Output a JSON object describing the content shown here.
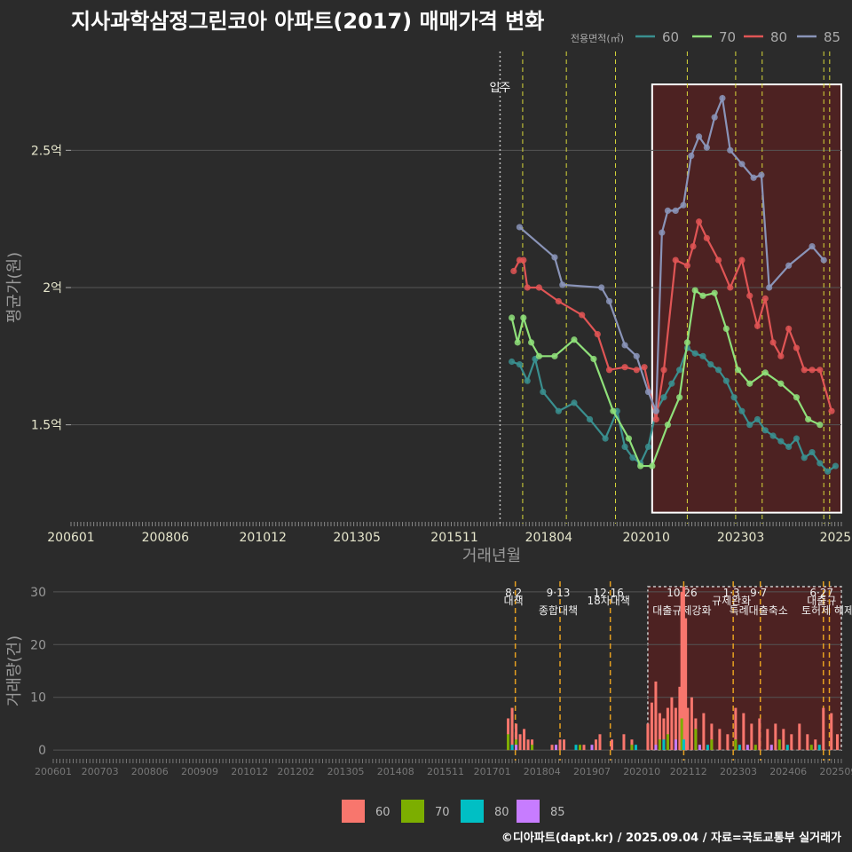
{
  "title": "지사과학삼정그린코아 아파트(2017) 매매가격 변화",
  "footer": "©디아파트(dapt.kr) / 2025.09.04 / 자료=국토교통부 실거래가",
  "colors": {
    "bg": "#2b2b2b",
    "grid": "#555555",
    "s60": "#3a8f8f",
    "s70": "#8fe07a",
    "s80": "#e05555",
    "s85": "#8a94b8",
    "bar60": "#f8766d",
    "bar70": "#7cae00",
    "bar80": "#00bfc4",
    "bar85": "#c77cff",
    "policy": "#d9d93a",
    "policy_bar": "#e6a020",
    "highlight": "#5a2020"
  },
  "chart_data": [
    {
      "type": "line",
      "title": "지사과학삼정그린코아 아파트(2017) 매매가격 변화",
      "xlabel": "거래년월",
      "ylabel": "평균가(원)",
      "x_range": [
        2006.0,
        2025.75
      ],
      "y_range": [
        1.14,
        2.86
      ],
      "x_ticks": [
        {
          "label": "200601",
          "x": 2006.0
        },
        {
          "label": "200806",
          "x": 2008.42
        },
        {
          "label": "201012",
          "x": 2010.92
        },
        {
          "label": "201305",
          "x": 2013.33
        },
        {
          "label": "201511",
          "x": 2015.83
        },
        {
          "label": "201804",
          "x": 2018.25
        },
        {
          "label": "202010",
          "x": 2020.75
        },
        {
          "label": "202303",
          "x": 2023.17
        },
        {
          "label": "2025",
          "x": 2025.6
        }
      ],
      "y_ticks": [
        {
          "label": "1.5억",
          "v": 1.5
        },
        {
          "label": "2억",
          "v": 2.0
        },
        {
          "label": "2.5억",
          "v": 2.5
        }
      ],
      "legend_title": "전용면적(㎡)",
      "legend_position": "top-right",
      "legend": [
        "60",
        "70",
        "80",
        "85"
      ],
      "marker_label": {
        "label": "입주",
        "x": 2017.0
      },
      "highlight_box": {
        "x0": 2020.9,
        "x1": 2025.8,
        "y0": 1.18,
        "y1": 2.74
      },
      "policy_lines": [
        2017.58,
        2018.7,
        2019.96,
        2021.8,
        2023.04,
        2023.72,
        2025.3,
        2025.45
      ],
      "series": [
        {
          "name": "60",
          "x": [
            2017.3,
            2017.5,
            2017.7,
            2017.9,
            2018.1,
            2018.5,
            2018.9,
            2019.3,
            2019.7,
            2020.0,
            2020.2,
            2020.4,
            2020.6,
            2020.8,
            2021.0,
            2021.2,
            2021.4,
            2021.6,
            2021.8,
            2022.0,
            2022.2,
            2022.4,
            2022.6,
            2022.8,
            2023.0,
            2023.2,
            2023.4,
            2023.6,
            2023.8,
            2024.0,
            2024.2,
            2024.4,
            2024.6,
            2024.8,
            2025.0,
            2025.2,
            2025.4,
            2025.6
          ],
          "values": [
            1.73,
            1.72,
            1.66,
            1.74,
            1.62,
            1.55,
            1.58,
            1.52,
            1.45,
            1.55,
            1.42,
            1.38,
            1.36,
            1.42,
            1.55,
            1.6,
            1.65,
            1.7,
            1.78,
            1.76,
            1.75,
            1.72,
            1.7,
            1.66,
            1.6,
            1.55,
            1.5,
            1.52,
            1.48,
            1.46,
            1.44,
            1.42,
            1.45,
            1.38,
            1.4,
            1.36,
            1.33,
            1.35
          ]
        },
        {
          "name": "70",
          "x": [
            2017.3,
            2017.45,
            2017.6,
            2017.8,
            2018.0,
            2018.4,
            2018.9,
            2019.4,
            2019.9,
            2020.3,
            2020.6,
            2020.9,
            2021.3,
            2021.6,
            2021.8,
            2022.0,
            2022.2,
            2022.5,
            2022.8,
            2023.1,
            2023.4,
            2023.8,
            2024.2,
            2024.6,
            2024.9,
            2025.2
          ],
          "values": [
            1.89,
            1.8,
            1.89,
            1.8,
            1.75,
            1.75,
            1.81,
            1.74,
            1.55,
            1.45,
            1.35,
            1.35,
            1.5,
            1.6,
            1.8,
            1.99,
            1.97,
            1.98,
            1.85,
            1.7,
            1.65,
            1.69,
            1.65,
            1.6,
            1.52,
            1.5
          ]
        },
        {
          "name": "80",
          "x": [
            2017.35,
            2017.5,
            2017.6,
            2017.7,
            2018.0,
            2018.5,
            2019.1,
            2019.5,
            2019.8,
            2020.2,
            2020.5,
            2020.7,
            2021.0,
            2021.2,
            2021.5,
            2021.8,
            2021.95,
            2022.1,
            2022.3,
            2022.6,
            2022.9,
            2023.2,
            2023.4,
            2023.6,
            2023.8,
            2024.0,
            2024.2,
            2024.4,
            2024.6,
            2024.8,
            2025.0,
            2025.2,
            2025.5
          ],
          "values": [
            2.06,
            2.1,
            2.1,
            2.0,
            2.0,
            1.95,
            1.9,
            1.83,
            1.7,
            1.71,
            1.7,
            1.71,
            1.52,
            1.7,
            2.1,
            2.08,
            2.15,
            2.24,
            2.18,
            2.1,
            2.0,
            2.1,
            1.97,
            1.86,
            1.96,
            1.8,
            1.75,
            1.85,
            1.78,
            1.7,
            1.7,
            1.7,
            1.55
          ]
        },
        {
          "name": "85",
          "x": [
            2017.5,
            2018.4,
            2018.6,
            2019.6,
            2019.8,
            2020.2,
            2020.5,
            2020.8,
            2021.0,
            2021.15,
            2021.3,
            2021.5,
            2021.7,
            2021.9,
            2022.1,
            2022.3,
            2022.5,
            2022.7,
            2022.9,
            2023.2,
            2023.5,
            2023.7,
            2023.9,
            2024.4,
            2025.0,
            2025.3
          ],
          "values": [
            2.22,
            2.11,
            2.01,
            2.0,
            1.95,
            1.79,
            1.75,
            1.62,
            1.55,
            2.2,
            2.28,
            2.28,
            2.3,
            2.48,
            2.55,
            2.51,
            2.62,
            2.69,
            2.5,
            2.45,
            2.4,
            2.41,
            2.0,
            2.08,
            2.15,
            2.1
          ]
        }
      ]
    },
    {
      "type": "bar",
      "xlabel": "",
      "ylabel": "거래량(건)",
      "x_range": [
        2006.0,
        2025.75
      ],
      "y_range": [
        -2,
        32
      ],
      "y_ticks": [
        0,
        10,
        20,
        30
      ],
      "x_ticks": [
        {
          "label": "200601",
          "x": 2006.0
        },
        {
          "label": "200703",
          "x": 2007.17
        },
        {
          "label": "200806",
          "x": 2008.42
        },
        {
          "label": "200909",
          "x": 2009.67
        },
        {
          "label": "201012",
          "x": 2010.92
        },
        {
          "label": "201202",
          "x": 2012.08
        },
        {
          "label": "201305",
          "x": 2013.33
        },
        {
          "label": "201408",
          "x": 2014.58
        },
        {
          "label": "201511",
          "x": 2015.83
        },
        {
          "label": "201701",
          "x": 2017.0
        },
        {
          "label": "201804",
          "x": 2018.25
        },
        {
          "label": "201907",
          "x": 2019.5
        },
        {
          "label": "202010",
          "x": 2020.75
        },
        {
          "label": "202112",
          "x": 2021.92
        },
        {
          "label": "202303",
          "x": 2023.17
        },
        {
          "label": "202406",
          "x": 2024.42
        },
        {
          "label": "202509",
          "x": 2025.67
        }
      ],
      "highlight_box": {
        "x0": 2020.9,
        "x1": 2025.75,
        "y0": 0,
        "y1": 31
      },
      "policy_lines": [
        {
          "x": 2017.58,
          "date": "8·2",
          "label": "대책"
        },
        {
          "x": 2018.7,
          "date": "9·13",
          "label": "종합대책"
        },
        {
          "x": 2019.96,
          "date": "12·16",
          "label": "18차대책"
        },
        {
          "x": 2021.8,
          "date": "10·26",
          "label": "대출규제강화"
        },
        {
          "x": 2023.04,
          "date": "1·3",
          "label": "규제완화"
        },
        {
          "x": 2023.72,
          "date": "9·7",
          "label": "특례대출축소"
        },
        {
          "x": 2025.3,
          "date": "6·27",
          "label": "대출규"
        },
        {
          "x": 2025.45,
          "date": "",
          "label": "토허제 해제"
        }
      ],
      "series": [
        {
          "name": "60",
          "x": [
            2017.4,
            2017.5,
            2017.6,
            2017.7,
            2017.8,
            2017.9,
            2018.0,
            2018.5,
            2018.7,
            2018.8,
            2019.3,
            2019.6,
            2019.7,
            2020.0,
            2020.3,
            2020.5,
            2020.9,
            2021.0,
            2021.1,
            2021.2,
            2021.3,
            2021.4,
            2021.5,
            2021.6,
            2021.7,
            2021.75,
            2021.8,
            2021.85,
            2021.9,
            2022.0,
            2022.1,
            2022.3,
            2022.5,
            2022.7,
            2022.9,
            2023.1,
            2023.3,
            2023.5,
            2023.7,
            2023.9,
            2024.1,
            2024.3,
            2024.5,
            2024.7,
            2024.9,
            2025.1,
            2025.3,
            2025.5,
            2025.65
          ],
          "values": [
            6,
            8,
            5,
            3,
            4,
            2,
            2,
            1,
            2,
            2,
            1,
            2,
            3,
            2,
            3,
            2,
            5,
            9,
            13,
            7,
            6,
            8,
            10,
            8,
            12,
            30,
            31,
            25,
            8,
            10,
            6,
            7,
            5,
            4,
            3,
            8,
            7,
            5,
            6,
            4,
            5,
            4,
            3,
            5,
            3,
            2,
            8,
            7,
            3
          ]
        },
        {
          "name": "70",
          "x": [
            2017.4,
            2017.6,
            2018.0,
            2019.2,
            2020.5,
            2021.2,
            2021.4,
            2021.75,
            2022.1,
            2022.5,
            2023.1,
            2023.6,
            2024.2,
            2025.0
          ],
          "values": [
            3,
            2,
            1,
            1,
            1,
            2,
            3,
            6,
            4,
            2,
            2,
            1,
            2,
            1
          ]
        },
        {
          "name": "80",
          "x": [
            2017.5,
            2019.1,
            2020.6,
            2021.3,
            2021.8,
            2022.4,
            2023.2,
            2024.4,
            2025.2
          ],
          "values": [
            1,
            1,
            1,
            2,
            2,
            1,
            1,
            1,
            1
          ]
        },
        {
          "name": "85",
          "x": [
            2017.6,
            2018.6,
            2019.5,
            2021.1,
            2021.6,
            2022.2,
            2023.4,
            2024.0
          ],
          "values": [
            1,
            1,
            1,
            1,
            2,
            1,
            1,
            1
          ]
        }
      ],
      "legend": [
        "60",
        "70",
        "80",
        "85"
      ],
      "legend_position": "bottom"
    }
  ]
}
